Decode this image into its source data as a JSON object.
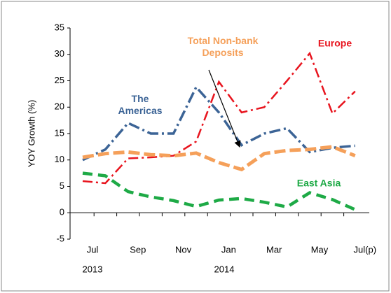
{
  "chart_data": {
    "type": "line",
    "y_label": "YOY Growth (%)",
    "categories": [
      "Jul",
      null,
      "Sep",
      null,
      "Nov",
      null,
      "Jan",
      null,
      "Mar",
      null,
      "May",
      null,
      "Jul(p)"
    ],
    "year_labels": [
      "2013",
      "2014"
    ],
    "ylim": [
      -5,
      35
    ],
    "yticks": [
      -5,
      0,
      5,
      10,
      15,
      20,
      25,
      30,
      35
    ],
    "series": [
      {
        "name": "The Americas",
        "color": "#3c6496",
        "values": [
          10,
          12,
          17,
          15,
          15,
          23.8,
          19,
          12.8,
          15,
          16,
          11.5,
          12.3,
          12.7
        ]
      },
      {
        "name": "Europe",
        "color": "#e8141e",
        "values": [
          6,
          5.6,
          10.3,
          10.5,
          10.8,
          13.5,
          24.8,
          19,
          20,
          25,
          30.2,
          18.8,
          23
        ]
      },
      {
        "name": "Total Non-bank Deposits",
        "color": "#f5a05a",
        "values": [
          10.5,
          11.2,
          11.5,
          11,
          10.8,
          11.3,
          9.5,
          8.2,
          11.2,
          11.8,
          12,
          12.5,
          10.8
        ]
      },
      {
        "name": "East Asia",
        "color": "#1eaa46",
        "values": [
          7.5,
          7,
          4,
          3,
          2.3,
          1.2,
          2.4,
          2.7,
          2,
          1.1,
          3.8,
          2.5,
          0.6
        ]
      }
    ]
  }
}
